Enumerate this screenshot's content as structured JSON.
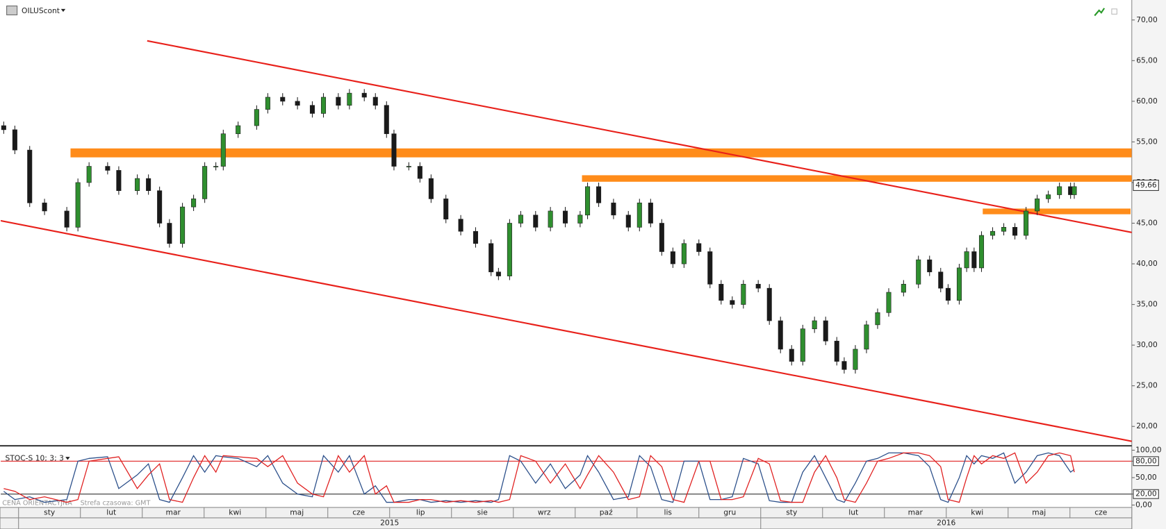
{
  "chart_data": [
    {
      "type": "candlestick",
      "series": [
        {
          "name": "OILUScont",
          "up_color": "#2f8f2f",
          "down_color": "#1a1a1a",
          "x": [
            -0.24,
            -0.06,
            0.18,
            0.42,
            0.78,
            0.96,
            1.14,
            1.44,
            1.62,
            1.92,
            2.1,
            2.28,
            2.44,
            2.65,
            2.83,
            3.01,
            3.19,
            3.31,
            3.55,
            3.85,
            4.03,
            4.27,
            4.51,
            4.75,
            4.93,
            5.17,
            5.35,
            5.59,
            5.77,
            5.95,
            6.07,
            6.31,
            6.49,
            6.67,
            6.91,
            7.15,
            7.39,
            7.64,
            7.76,
            7.94,
            8.12,
            8.36,
            8.6,
            8.84,
            9.08,
            9.2,
            9.38,
            9.62,
            9.86,
            10.04,
            10.22,
            10.4,
            10.58,
            10.76,
            11.0,
            11.18,
            11.36,
            11.54,
            11.72,
            11.96,
            12.14,
            12.32,
            12.5,
            12.68,
            12.87,
            13.05,
            13.23,
            13.35,
            13.53,
            13.71,
            13.89,
            14.07,
            14.31,
            14.55,
            14.73,
            14.91,
            15.03,
            15.21,
            15.33,
            15.45,
            15.57,
            15.75,
            15.93,
            16.11,
            16.29,
            16.47,
            16.65,
            16.83,
            17.01,
            17.07
          ],
          "open": [
            57,
            56.5,
            54,
            47.5,
            46.5,
            44.5,
            50,
            52,
            51.5,
            49,
            50.5,
            49,
            45,
            42.5,
            47,
            48,
            52,
            52,
            56,
            57,
            59,
            60.5,
            60,
            59.5,
            58.5,
            60.5,
            59.5,
            61,
            60.5,
            59.5,
            56,
            52,
            52,
            50.5,
            48,
            45.5,
            44,
            42.5,
            39,
            38.5,
            45,
            46,
            44.5,
            46.5,
            45,
            46,
            49.5,
            47.5,
            46,
            44.5,
            47.5,
            45,
            41.5,
            40,
            42.5,
            41.5,
            37.5,
            35.5,
            35,
            37.5,
            37,
            33,
            29.5,
            28,
            32,
            33,
            30.5,
            28,
            27,
            29.5,
            32.5,
            34,
            36.5,
            37.5,
            40.5,
            39,
            37,
            35.5,
            39.5,
            41.5,
            39.5,
            43.5,
            44,
            44.5,
            43.5,
            46.5,
            48,
            48.5,
            49.5,
            48.5
          ],
          "high": [
            57.5,
            57,
            54.5,
            48,
            47,
            50.5,
            52.5,
            52.5,
            52,
            51,
            51,
            49.5,
            45.5,
            47.5,
            48.5,
            52.5,
            52.5,
            56.5,
            57.5,
            59.5,
            61,
            61,
            60.5,
            60,
            61,
            61,
            61.5,
            61.5,
            61,
            60,
            56.5,
            52.5,
            52.5,
            51,
            48.5,
            46,
            44.5,
            43,
            39.5,
            45.5,
            46.5,
            46.5,
            47,
            47,
            46.5,
            50,
            50,
            48,
            46.5,
            48,
            48,
            45.5,
            42,
            43,
            43,
            42,
            38,
            36,
            38,
            38,
            37.5,
            33.5,
            30,
            32.5,
            33.5,
            33.5,
            31,
            28.5,
            30,
            33,
            34.5,
            37,
            38,
            41,
            41,
            39.5,
            37.5,
            40,
            42,
            42,
            44,
            44.5,
            45,
            45,
            47,
            48.5,
            49,
            50,
            50,
            50
          ],
          "low": [
            56,
            53.5,
            47,
            46,
            44,
            44,
            49.5,
            51,
            48.5,
            48.5,
            48.5,
            44.5,
            42,
            42,
            46.5,
            47.5,
            51.5,
            51.5,
            55.5,
            56.5,
            58.5,
            59.5,
            59,
            58,
            58,
            59,
            59,
            60,
            59,
            55.5,
            51.5,
            51.5,
            50,
            47.5,
            45,
            43.5,
            42,
            38.5,
            38,
            38,
            44.5,
            44,
            44,
            44.5,
            44.5,
            45.5,
            47,
            45.5,
            44,
            44,
            44.5,
            41,
            39.5,
            39.5,
            41,
            37,
            35,
            34.5,
            34.5,
            36.5,
            32.5,
            29,
            27.5,
            27.5,
            31.5,
            30,
            27.5,
            26.5,
            26.5,
            29,
            32,
            33.5,
            36,
            37,
            38.5,
            36.5,
            35,
            35,
            39,
            39,
            39,
            43,
            43.5,
            43,
            43,
            46,
            47.5,
            48,
            48,
            48
          ],
          "close": [
            56.5,
            54,
            47.5,
            46.5,
            44.5,
            50,
            52,
            51.5,
            49,
            50.5,
            49,
            45,
            42.5,
            47,
            48,
            52,
            52,
            56,
            57,
            59,
            60.5,
            60,
            59.5,
            58.5,
            60.5,
            59.5,
            61,
            60.5,
            59.5,
            56,
            52,
            52,
            50.5,
            48,
            45.5,
            44,
            42.5,
            39,
            38.5,
            45,
            46,
            44.5,
            46.5,
            45,
            46,
            49.5,
            47.5,
            46,
            44.5,
            47.5,
            45,
            41.5,
            40,
            42.5,
            41.5,
            37.5,
            35.5,
            35,
            37.5,
            37,
            33,
            29.5,
            28,
            32,
            33,
            30.5,
            28,
            27,
            29.5,
            32.5,
            34,
            36.5,
            37.5,
            40.5,
            39,
            37,
            35.5,
            39.5,
            41.5,
            39.5,
            43.5,
            44,
            44.5,
            43.5,
            46.5,
            48,
            48.5,
            49.5,
            48.5,
            49.5
          ]
        }
      ],
      "xlim": [
        -0.24,
        18
      ],
      "ylim": [
        17.8,
        72
      ],
      "yticks": [
        {
          "value": 20,
          "label": "20,00"
        },
        {
          "value": 25,
          "label": "25,00"
        },
        {
          "value": 30,
          "label": "30,00"
        },
        {
          "value": 35,
          "label": "35,00"
        },
        {
          "value": 40,
          "label": "40,00"
        },
        {
          "value": 45,
          "label": "45,00"
        },
        {
          "value": 50,
          "label": "50,00"
        },
        {
          "value": 55,
          "label": "55,00"
        },
        {
          "value": 60,
          "label": "60,00"
        },
        {
          "value": 65,
          "label": "65,00"
        },
        {
          "value": 70,
          "label": "70,00"
        }
      ],
      "months": [
        "sty",
        "lut",
        "mar",
        "kwi",
        "maj",
        "cze",
        "lip",
        "sie",
        "wrz",
        "paź",
        "lis",
        "gru",
        "sty",
        "lut",
        "mar",
        "kwi",
        "maj",
        "cze"
      ],
      "years": [
        "2015",
        "2016"
      ],
      "last_price": {
        "value": 49.66,
        "label": "49,66"
      },
      "trendlines": [
        {
          "color": "#e8201a",
          "x": [
            2.08,
            18
          ],
          "y": [
            67.44,
            43.86
          ]
        },
        {
          "color": "#e8201a",
          "x": [
            -0.3,
            18
          ],
          "y": [
            45.32,
            18.17
          ]
        }
      ],
      "zones": [
        {
          "color": "#ff8c1a",
          "x": [
            0.84,
            18
          ],
          "y": [
            53.1,
            54.2
          ]
        },
        {
          "color": "#ff8c1a",
          "x": [
            9.11,
            18
          ],
          "y": [
            50.1,
            50.9
          ]
        },
        {
          "color": "#ff8c1a",
          "x": [
            15.59,
            17.98
          ],
          "y": [
            46.1,
            46.8
          ]
        }
      ],
      "footer": [
        "CENA ORIENTACYJNA",
        "Strefa czasowa: GMT"
      ]
    },
    {
      "type": "line",
      "title": "STOC-S 10; 3; 3",
      "x": [
        -0.24,
        -0.06,
        0.18,
        0.42,
        0.78,
        0.96,
        1.14,
        1.44,
        1.62,
        1.92,
        2.1,
        2.28,
        2.44,
        2.65,
        2.83,
        3.01,
        3.19,
        3.31,
        3.55,
        3.85,
        4.03,
        4.27,
        4.51,
        4.75,
        4.93,
        5.17,
        5.35,
        5.59,
        5.77,
        5.95,
        6.07,
        6.31,
        6.49,
        6.67,
        6.91,
        7.15,
        7.39,
        7.64,
        7.76,
        7.94,
        8.12,
        8.36,
        8.6,
        8.84,
        9.08,
        9.2,
        9.38,
        9.62,
        9.86,
        10.04,
        10.22,
        10.4,
        10.58,
        10.76,
        11.0,
        11.18,
        11.36,
        11.54,
        11.72,
        11.96,
        12.14,
        12.32,
        12.5,
        12.68,
        12.87,
        13.05,
        13.23,
        13.35,
        13.53,
        13.71,
        13.89,
        14.07,
        14.31,
        14.55,
        14.73,
        14.91,
        15.03,
        15.21,
        15.33,
        15.45,
        15.57,
        15.75,
        15.93,
        16.11,
        16.29,
        16.47,
        16.65,
        16.83,
        17.01,
        17.07
      ],
      "series": [
        {
          "color": "#2b4f8a",
          "values": [
            25,
            10,
            15,
            5,
            10,
            80,
            85,
            88,
            30,
            55,
            75,
            10,
            5,
            50,
            90,
            60,
            90,
            88,
            85,
            70,
            90,
            40,
            20,
            15,
            90,
            60,
            90,
            20,
            35,
            5,
            5,
            10,
            10,
            5,
            8,
            5,
            8,
            5,
            10,
            90,
            80,
            40,
            75,
            30,
            55,
            90,
            60,
            10,
            15,
            90,
            70,
            10,
            5,
            80,
            80,
            10,
            10,
            15,
            85,
            75,
            8,
            5,
            5,
            60,
            90,
            50,
            10,
            5,
            40,
            80,
            85,
            95,
            95,
            90,
            70,
            10,
            5,
            50,
            90,
            75,
            90,
            85,
            95,
            40,
            60,
            90,
            95,
            90,
            60,
            65
          ]
        },
        {
          "color": "#e02020",
          "values": [
            30,
            25,
            10,
            15,
            5,
            10,
            80,
            85,
            88,
            30,
            55,
            75,
            10,
            5,
            50,
            90,
            60,
            90,
            88,
            85,
            70,
            90,
            40,
            20,
            15,
            90,
            60,
            90,
            20,
            35,
            5,
            5,
            10,
            10,
            5,
            8,
            5,
            8,
            5,
            10,
            90,
            80,
            40,
            75,
            30,
            55,
            90,
            60,
            10,
            15,
            90,
            70,
            10,
            5,
            80,
            80,
            10,
            10,
            15,
            85,
            75,
            8,
            5,
            5,
            60,
            90,
            50,
            10,
            5,
            40,
            80,
            85,
            95,
            95,
            90,
            70,
            10,
            5,
            50,
            90,
            75,
            90,
            85,
            95,
            40,
            60,
            90,
            95,
            90,
            60
          ]
        }
      ],
      "ylim": [
        -3,
        104
      ],
      "yticks": [
        {
          "value": 0,
          "label": "0,00"
        },
        {
          "value": 20,
          "label": "20,00"
        },
        {
          "value": 50,
          "label": "50,00"
        },
        {
          "value": 80,
          "label": "80,00"
        },
        {
          "value": 100,
          "label": "100,00"
        }
      ],
      "levels": [
        {
          "value": 80,
          "color": "#e02020"
        },
        {
          "value": 20,
          "color": "#333333"
        }
      ]
    }
  ]
}
